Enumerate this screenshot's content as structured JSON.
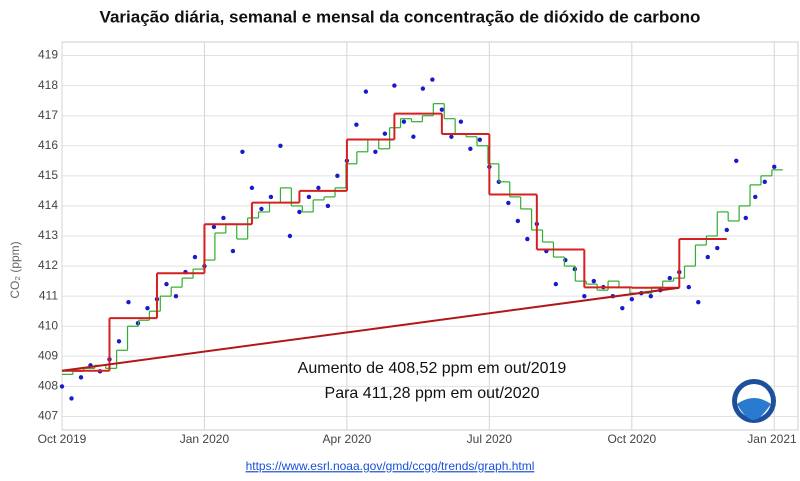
{
  "chart_data": {
    "type": "step-scatter",
    "title": "Variação diária, semanal e mensal da concentração de dióxido de carbono",
    "y_label": "CO₂ (ppm)",
    "annotations": [
      "Aumento de 408,52 ppm em out/2019",
      "Para 411,28 ppm em out/2020"
    ],
    "link": "https://www.esrl.noaa.gov/gmd/ccgg/trends/graph.html",
    "xlim": [
      0,
      15.5
    ],
    "ylim": [
      406.55,
      419.45
    ],
    "xticks": [
      {
        "value": 0,
        "label": "Oct 2019"
      },
      {
        "value": 3,
        "label": "Jan 2020"
      },
      {
        "value": 6,
        "label": "Apr 2020"
      },
      {
        "value": 9,
        "label": "Jul 2020"
      },
      {
        "value": 12,
        "label": "Oct 2020"
      },
      {
        "value": 15,
        "label": "Jan 2021"
      }
    ],
    "yticks": [
      407,
      408,
      409,
      410,
      411,
      412,
      413,
      414,
      415,
      416,
      417,
      418,
      419
    ],
    "grid": true,
    "series": [
      {
        "style": "points",
        "color": "#1a1acc",
        "x": [
          0,
          0.2,
          0.4,
          0.6,
          0.8,
          1,
          1.2,
          1.4,
          1.6,
          1.8,
          2,
          2.2,
          2.4,
          2.6,
          2.8,
          3,
          3.2,
          3.4,
          3.6,
          3.8,
          4,
          4.2,
          4.4,
          4.6,
          4.8,
          5,
          5.2,
          5.4,
          5.6,
          5.8,
          6,
          6.2,
          6.4,
          6.6,
          6.8,
          7,
          7.2,
          7.4,
          7.6,
          7.8,
          8,
          8.2,
          8.4,
          8.6,
          8.8,
          9,
          9.2,
          9.4,
          9.6,
          9.8,
          10,
          10.2,
          10.4,
          10.6,
          10.8,
          11,
          11.2,
          11.4,
          11.6,
          11.8,
          12,
          12.2,
          12.4,
          12.6,
          12.8,
          13,
          13.2,
          13.4,
          13.6,
          13.8,
          14,
          14.2,
          14.4,
          14.6,
          14.8,
          15
        ],
        "values": [
          408.0,
          407.6,
          408.3,
          408.7,
          408.5,
          408.9,
          409.5,
          410.8,
          410.1,
          410.6,
          410.9,
          411.4,
          411.0,
          411.8,
          412.3,
          412.0,
          413.3,
          413.6,
          412.5,
          415.8,
          414.6,
          413.9,
          414.3,
          416.0,
          413.0,
          413.8,
          414.3,
          414.6,
          414.0,
          415.0,
          415.5,
          416.7,
          417.8,
          415.8,
          416.4,
          418.0,
          416.8,
          416.3,
          417.9,
          418.2,
          417.2,
          416.3,
          416.8,
          415.9,
          416.2,
          415.3,
          414.8,
          414.1,
          413.5,
          412.9,
          413.4,
          412.5,
          411.4,
          412.2,
          411.9,
          411.0,
          411.5,
          411.3,
          411.0,
          410.6,
          410.9,
          411.1,
          411.0,
          411.2,
          411.6,
          411.8,
          411.3,
          410.8,
          412.3,
          412.6,
          413.2,
          415.5,
          413.6,
          414.3,
          414.8,
          415.3
        ]
      },
      {
        "style": "step",
        "color": "#2fae2f",
        "x": [
          0,
          0.23,
          0.46,
          0.69,
          0.92,
          1.15,
          1.38,
          1.61,
          1.84,
          2.07,
          2.3,
          2.53,
          2.76,
          2.99,
          3.22,
          3.45,
          3.68,
          3.91,
          4.14,
          4.37,
          4.6,
          4.83,
          5.06,
          5.29,
          5.52,
          5.75,
          5.98,
          6.21,
          6.44,
          6.67,
          6.9,
          7.13,
          7.36,
          7.59,
          7.82,
          8.05,
          8.28,
          8.51,
          8.74,
          8.97,
          9.2,
          9.43,
          9.66,
          9.89,
          10.12,
          10.35,
          10.58,
          10.81,
          11.04,
          11.27,
          11.5,
          11.73,
          11.96,
          12.19,
          12.42,
          12.65,
          12.88,
          13.11,
          13.34,
          13.57,
          13.8,
          14.03,
          14.26,
          14.49,
          14.72,
          14.95
        ],
        "values": [
          408.4,
          408.5,
          408.6,
          408.7,
          408.6,
          409.2,
          410.0,
          410.2,
          410.5,
          411.0,
          411.3,
          411.6,
          411.9,
          412.2,
          413.1,
          413.4,
          412.9,
          413.6,
          413.8,
          414.1,
          414.6,
          414.0,
          413.8,
          414.2,
          414.3,
          414.6,
          415.4,
          415.8,
          416.2,
          415.9,
          416.6,
          416.9,
          416.8,
          417.0,
          417.4,
          416.9,
          416.4,
          416.3,
          416.0,
          415.4,
          414.8,
          414.3,
          413.9,
          413.2,
          412.8,
          412.3,
          412.0,
          411.5,
          411.4,
          411.2,
          411.5,
          411.3,
          411.1,
          411.1,
          411.3,
          411.5,
          411.6,
          412.0,
          412.7,
          413.0,
          413.8,
          413.5,
          414.0,
          414.7,
          415.0,
          415.2
        ]
      },
      {
        "style": "step",
        "color": "#d42020",
        "x": [
          0,
          1,
          2,
          3,
          4,
          5,
          6,
          7,
          8,
          9,
          10,
          11,
          12,
          13
        ],
        "values": [
          408.52,
          410.27,
          411.76,
          413.39,
          414.11,
          414.5,
          416.21,
          417.07,
          416.39,
          414.38,
          412.55,
          411.29,
          411.28,
          412.9
        ]
      }
    ]
  }
}
